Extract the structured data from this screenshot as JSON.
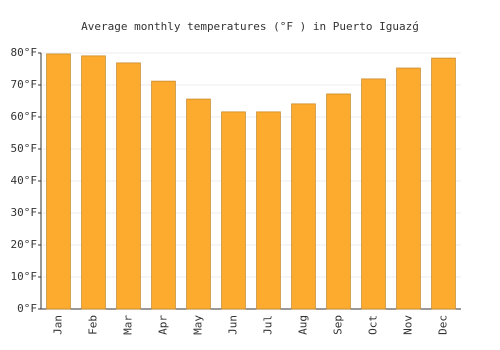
{
  "chart_data": {
    "type": "bar",
    "title": "Average monthly temperatures (°F ) in Puerto Iguazǵ",
    "categories": [
      "Jan",
      "Feb",
      "Mar",
      "Apr",
      "May",
      "Jun",
      "Jul",
      "Aug",
      "Sep",
      "Oct",
      "Nov",
      "Dec"
    ],
    "values": [
      79.7,
      79.1,
      76.9,
      71.2,
      65.6,
      61.6,
      61.6,
      64.1,
      67.2,
      71.9,
      75.3,
      78.4
    ],
    "color": "#fdab2f",
    "ylim": [
      0,
      80
    ],
    "yticks": [
      {
        "value": 0,
        "label": "0°F"
      },
      {
        "value": 10,
        "label": "10°F"
      },
      {
        "value": 20,
        "label": "20°F"
      },
      {
        "value": 30,
        "label": "30°F"
      },
      {
        "value": 40,
        "label": "40°F"
      },
      {
        "value": 50,
        "label": "50°F"
      },
      {
        "value": 60,
        "label": "60°F"
      },
      {
        "value": 70,
        "label": "70°F"
      },
      {
        "value": 80,
        "label": "80°F"
      }
    ],
    "grid": true
  }
}
